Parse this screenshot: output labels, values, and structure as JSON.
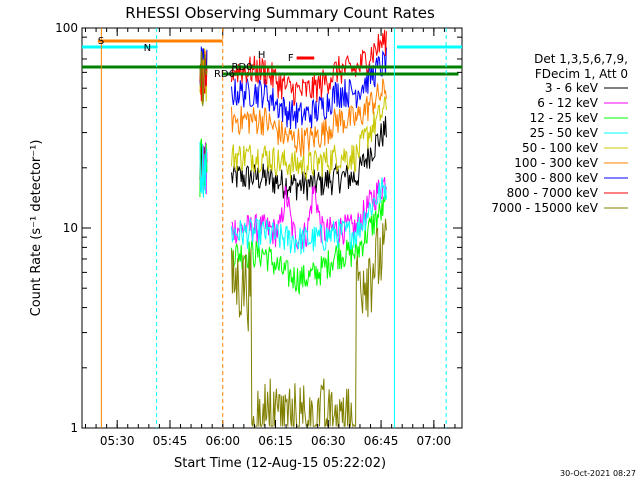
{
  "chart_data": {
    "type": "line",
    "title": "RHESSI Observing Summary Count Rates",
    "xlabel": "Start Time (12-Aug-15 05:22:02)",
    "ylabel": "Count Rate (s⁻¹ detector⁻¹)",
    "ylog": true,
    "ylim": [
      1,
      100
    ],
    "xlim_min": [
      -4,
      104
    ],
    "x_tick_labels": [
      "05:30",
      "05:45",
      "06:00",
      "06:15",
      "06:30",
      "06:45",
      "07:00"
    ],
    "x_tick_min": [
      6,
      21,
      36,
      51,
      66,
      81,
      96
    ],
    "y_tick_labels": [
      "1",
      "10",
      "100"
    ],
    "y_tick_values": [
      1,
      10,
      100
    ],
    "legend_header": [
      "Det 1,3,5,6,7,9,",
      "FDecim 1, Att 0"
    ],
    "footer_date": "30-Oct-2021 08:27",
    "series": [
      {
        "name": "3 - 6 keV",
        "color": "#000000",
        "points": [
          [
            0,
            "-"
          ],
          [
            1,
            "-"
          ],
          [
            2,
            "-"
          ],
          [
            3,
            "-"
          ],
          [
            4,
            "-"
          ],
          [
            5,
            "-"
          ],
          [
            6,
            "-"
          ],
          [
            7,
            "-"
          ],
          [
            8,
            "-"
          ],
          [
            9,
            "-"
          ],
          [
            10,
            "-"
          ],
          [
            11,
            "-"
          ],
          [
            12,
            "-"
          ],
          [
            13,
            "-"
          ],
          [
            14,
            "-"
          ],
          [
            15,
            "-"
          ],
          [
            16,
            "-"
          ],
          [
            17,
            "-"
          ],
          [
            18,
            "-"
          ],
          [
            19,
            "-"
          ],
          [
            20,
            "-"
          ],
          [
            21,
            "-"
          ],
          [
            22,
            "-"
          ],
          [
            23,
            "-"
          ],
          [
            24,
            "-"
          ],
          [
            25,
            "-"
          ],
          [
            26,
            "-"
          ],
          [
            27,
            "-"
          ],
          [
            28,
            "-"
          ],
          [
            29,
            "-"
          ],
          [
            30,
            "-"
          ],
          [
            31,
            "-"
          ],
          [
            32,
            "-"
          ],
          [
            33,
            "-"
          ],
          [
            34,
            "-"
          ],
          [
            35,
            "-"
          ],
          [
            36,
            "-"
          ],
          [
            37,
            "-"
          ],
          [
            38,
            "-"
          ]
        ]
      },
      {
        "name": "6 - 12 keV",
        "color": "#ff00ff"
      },
      {
        "name": "12 - 25 keV",
        "color": "#00ff00"
      },
      {
        "name": "25 - 50 keV",
        "color": "#00ffff"
      },
      {
        "name": "50 - 100 keV",
        "color": "#c8c800"
      },
      {
        "name": "100 - 300 keV",
        "color": "#ff8000"
      },
      {
        "name": "300 - 800 keV",
        "color": "#0000ff"
      },
      {
        "name": "800 - 7000 keV",
        "color": "#ff0000"
      },
      {
        "name": "7000 - 15000 keV",
        "color": "#808000"
      }
    ],
    "flag_labels": {
      "s": "S",
      "n": "N",
      "f": "F",
      "rd0": "RD0",
      "rd6": "RD6",
      "h": "H"
    }
  }
}
